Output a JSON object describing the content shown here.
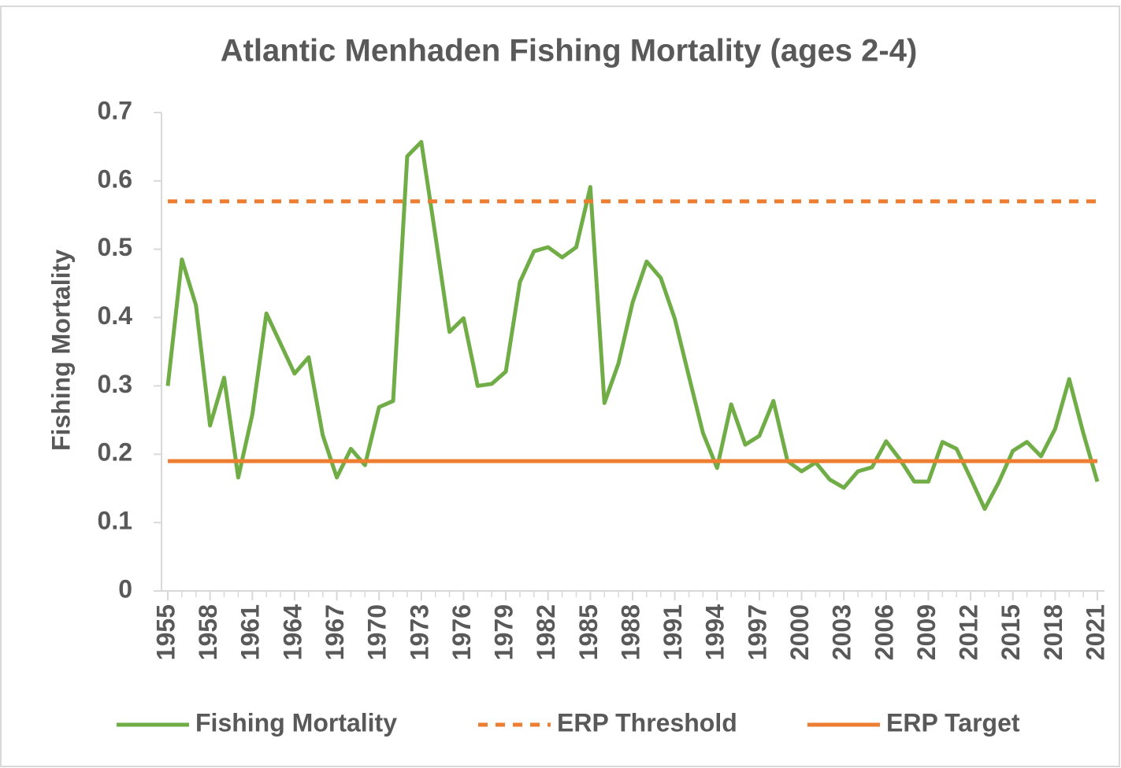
{
  "chart_data": {
    "type": "line",
    "title": "Atlantic Menhaden Fishing Mortality (ages 2-4)",
    "y_label": "Fishing Mortality",
    "x": [
      1955,
      1956,
      1957,
      1958,
      1959,
      1960,
      1961,
      1962,
      1963,
      1964,
      1965,
      1966,
      1967,
      1968,
      1969,
      1970,
      1971,
      1972,
      1973,
      1974,
      1975,
      1976,
      1977,
      1978,
      1979,
      1980,
      1981,
      1982,
      1983,
      1984,
      1985,
      1986,
      1987,
      1988,
      1989,
      1990,
      1991,
      1992,
      1993,
      1994,
      1995,
      1996,
      1997,
      1998,
      1999,
      2000,
      2001,
      2002,
      2003,
      2004,
      2005,
      2006,
      2007,
      2008,
      2009,
      2010,
      2011,
      2012,
      2013,
      2014,
      2015,
      2016,
      2017,
      2018,
      2019,
      2020,
      2021
    ],
    "series": [
      {
        "name": "Fishing Mortality",
        "color": "#70ad47",
        "dashed": false,
        "values": [
          0.3,
          0.485,
          0.418,
          0.242,
          0.312,
          0.166,
          0.258,
          0.406,
          0.362,
          0.318,
          0.342,
          0.228,
          0.166,
          0.208,
          0.184,
          0.269,
          0.278,
          0.636,
          0.657,
          0.52,
          0.379,
          0.399,
          0.3,
          0.303,
          0.321,
          0.452,
          0.497,
          0.503,
          0.488,
          0.503,
          0.591,
          0.275,
          0.333,
          0.422,
          0.482,
          0.458,
          0.398,
          0.314,
          0.231,
          0.18,
          0.273,
          0.214,
          0.227,
          0.278,
          0.19,
          0.175,
          0.188,
          0.163,
          0.151,
          0.175,
          0.181,
          0.219,
          0.192,
          0.16,
          0.16,
          0.218,
          0.208,
          0.165,
          0.12,
          0.159,
          0.205,
          0.218,
          0.197,
          0.237,
          0.31,
          0.231,
          0.16
        ]
      },
      {
        "name": "ERP Threshold",
        "color": "#ed7d31",
        "dashed": true,
        "values": [
          0.57,
          0.57,
          0.57,
          0.57,
          0.57,
          0.57,
          0.57,
          0.57,
          0.57,
          0.57,
          0.57,
          0.57,
          0.57,
          0.57,
          0.57,
          0.57,
          0.57,
          0.57,
          0.57,
          0.57,
          0.57,
          0.57,
          0.57,
          0.57,
          0.57,
          0.57,
          0.57,
          0.57,
          0.57,
          0.57,
          0.57,
          0.57,
          0.57,
          0.57,
          0.57,
          0.57,
          0.57,
          0.57,
          0.57,
          0.57,
          0.57,
          0.57,
          0.57,
          0.57,
          0.57,
          0.57,
          0.57,
          0.57,
          0.57,
          0.57,
          0.57,
          0.57,
          0.57,
          0.57,
          0.57,
          0.57,
          0.57,
          0.57,
          0.57,
          0.57,
          0.57,
          0.57,
          0.57,
          0.57,
          0.57,
          0.57,
          0.57
        ]
      },
      {
        "name": "ERP Target",
        "color": "#ed7d31",
        "dashed": false,
        "values": [
          0.19,
          0.19,
          0.19,
          0.19,
          0.19,
          0.19,
          0.19,
          0.19,
          0.19,
          0.19,
          0.19,
          0.19,
          0.19,
          0.19,
          0.19,
          0.19,
          0.19,
          0.19,
          0.19,
          0.19,
          0.19,
          0.19,
          0.19,
          0.19,
          0.19,
          0.19,
          0.19,
          0.19,
          0.19,
          0.19,
          0.19,
          0.19,
          0.19,
          0.19,
          0.19,
          0.19,
          0.19,
          0.19,
          0.19,
          0.19,
          0.19,
          0.19,
          0.19,
          0.19,
          0.19,
          0.19,
          0.19,
          0.19,
          0.19,
          0.19,
          0.19,
          0.19,
          0.19,
          0.19,
          0.19,
          0.19,
          0.19,
          0.19,
          0.19,
          0.19,
          0.19,
          0.19,
          0.19,
          0.19,
          0.19,
          0.19,
          0.19
        ]
      }
    ],
    "xlim": [
      1955,
      2021
    ],
    "xticks": [
      1955,
      1958,
      1961,
      1964,
      1967,
      1970,
      1973,
      1976,
      1979,
      1982,
      1985,
      1988,
      1991,
      1994,
      1997,
      2000,
      2003,
      2006,
      2009,
      2012,
      2015,
      2018,
      2021
    ],
    "ylim": [
      0,
      0.7
    ],
    "yticks": [
      0,
      0.1,
      0.2,
      0.3,
      0.4,
      0.5,
      0.6,
      0.7
    ],
    "grid": false
  }
}
